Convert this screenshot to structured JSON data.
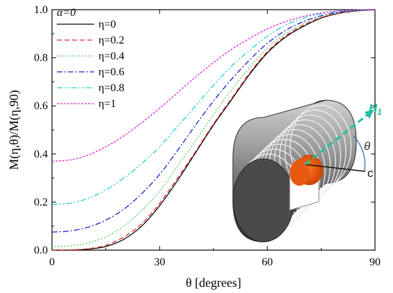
{
  "chart_data": {
    "type": "line",
    "title": "",
    "xlabel": "θ [degrees]",
    "ylabel": "M(η,θ)/M(η,90)",
    "xlim": [
      0,
      90
    ],
    "ylim": [
      0.0,
      1.0
    ],
    "xticks": [
      "0",
      "30",
      "60",
      "90"
    ],
    "yticks": [
      "0.0",
      "0.2",
      "0.4",
      "0.6",
      "0.8",
      "1.0"
    ],
    "grid": false,
    "legend_title": "α=0",
    "legend_position": "top-left",
    "x": [
      0,
      5,
      10,
      15,
      20,
      25,
      30,
      35,
      40,
      45,
      50,
      55,
      60,
      65,
      70,
      75,
      80,
      85,
      90
    ],
    "series": [
      {
        "name": "η=0",
        "color": "#000000",
        "dash": "solid",
        "values": [
          0.0,
          0.0,
          0.004,
          0.015,
          0.045,
          0.1,
          0.185,
          0.29,
          0.405,
          0.52,
          0.625,
          0.73,
          0.82,
          0.885,
          0.93,
          0.965,
          0.985,
          0.995,
          1.0
        ]
      },
      {
        "name": "η=0.2",
        "color": "#e8242a",
        "dash": "dashed",
        "values": [
          0.0,
          0.001,
          0.006,
          0.02,
          0.055,
          0.11,
          0.195,
          0.3,
          0.41,
          0.525,
          0.63,
          0.735,
          0.825,
          0.89,
          0.935,
          0.967,
          0.986,
          0.996,
          1.0
        ]
      },
      {
        "name": "η=0.4",
        "color": "#22bb22",
        "dash": "dotted",
        "values": [
          0.015,
          0.018,
          0.03,
          0.055,
          0.1,
          0.165,
          0.245,
          0.35,
          0.455,
          0.565,
          0.665,
          0.76,
          0.84,
          0.9,
          0.94,
          0.97,
          0.988,
          0.997,
          1.0
        ]
      },
      {
        "name": "η=0.6",
        "color": "#1a1acc",
        "dash": "dashdot",
        "values": [
          0.075,
          0.08,
          0.095,
          0.125,
          0.17,
          0.235,
          0.315,
          0.415,
          0.52,
          0.62,
          0.71,
          0.79,
          0.86,
          0.913,
          0.95,
          0.975,
          0.99,
          0.998,
          1.0
        ]
      },
      {
        "name": "η=0.8",
        "color": "#22cccc",
        "dash": "dashdotdot",
        "values": [
          0.19,
          0.195,
          0.215,
          0.25,
          0.3,
          0.36,
          0.43,
          0.515,
          0.6,
          0.685,
          0.765,
          0.83,
          0.89,
          0.935,
          0.965,
          0.983,
          0.993,
          0.998,
          1.0
        ]
      },
      {
        "name": "η=1",
        "color": "#dd22dd",
        "dash": "shortdash",
        "values": [
          0.37,
          0.375,
          0.395,
          0.43,
          0.475,
          0.53,
          0.59,
          0.655,
          0.72,
          0.78,
          0.835,
          0.88,
          0.92,
          0.95,
          0.972,
          0.986,
          0.995,
          0.999,
          1.0
        ]
      }
    ]
  },
  "inset": {
    "field_label": "H",
    "field_subscript": "1",
    "angle_label": "θ",
    "axis_label": "c",
    "field_color": "#22c0a0",
    "core_color": "#ee5500"
  }
}
